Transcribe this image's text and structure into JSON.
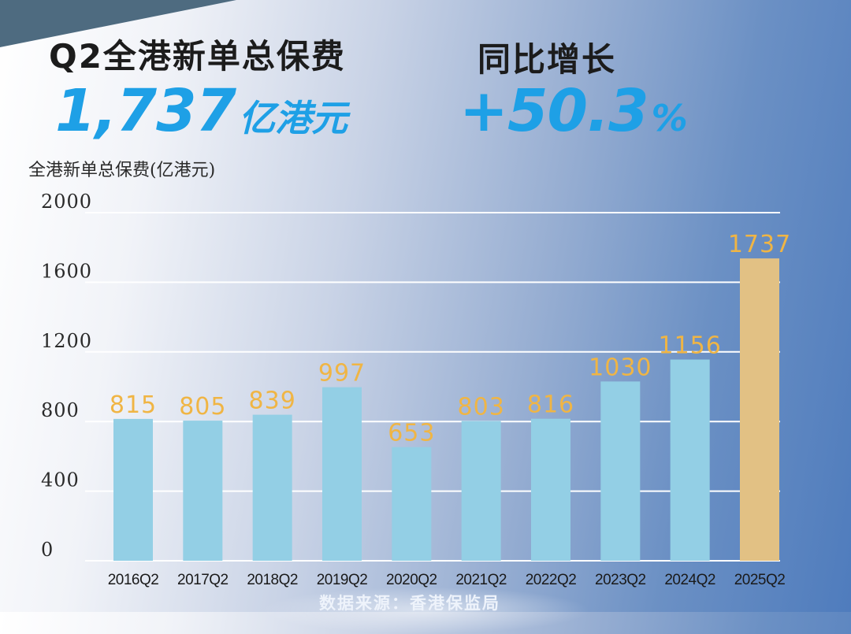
{
  "header": {
    "title": "Q2全港新单总保费",
    "total_value": "1,737",
    "total_unit": "亿港元",
    "growth_title": "同比增长",
    "growth_value": "+50.3",
    "growth_unit": "%"
  },
  "source": "数据来源：香港保监局",
  "chart_data": {
    "type": "bar",
    "title": "Q2全港新单总保费",
    "ylabel": "全港新单总保费(亿港元)",
    "xlabel": "",
    "categories": [
      "2016Q2",
      "2017Q2",
      "2018Q2",
      "2019Q2",
      "2020Q2",
      "2021Q2",
      "2022Q2",
      "2023Q2",
      "2024Q2",
      "2025Q2"
    ],
    "values": [
      815,
      805,
      839,
      997,
      653,
      803,
      816,
      1030,
      1156,
      1737
    ],
    "yticks": [
      0,
      400,
      800,
      1200,
      1600,
      2000
    ],
    "ylim": [
      0,
      2000
    ],
    "grid": true,
    "colors": {
      "bar": "#93cfe5",
      "highlight_bar": "#e2c184",
      "value_label": "#f0b544",
      "grid": "#ffffff",
      "axis_text": "#2a2a2a"
    },
    "highlight_index": 9
  }
}
